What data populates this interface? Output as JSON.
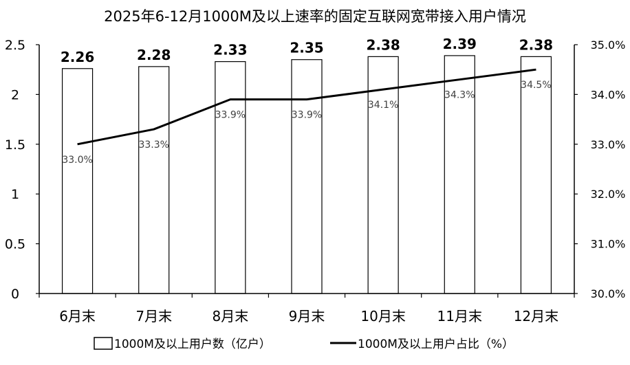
{
  "chart_data": {
    "type": "bar",
    "title": "2025年6-12月1000M及以上速率的固定互联网宽带接入用户情况",
    "categories": [
      "6月末",
      "7月末",
      "8月末",
      "9月末",
      "10月末",
      "11月末",
      "12月末"
    ],
    "series": [
      {
        "name": "1000M及以上用户数（亿户）",
        "type": "bar",
        "axis": "left",
        "values": [
          2.26,
          2.28,
          2.33,
          2.35,
          2.38,
          2.39,
          2.38
        ],
        "labels": [
          "2.26",
          "2.28",
          "2.33",
          "2.35",
          "2.38",
          "2.39",
          "2.38"
        ]
      },
      {
        "name": "1000M及以上用户占比（%）",
        "type": "line",
        "axis": "right",
        "values": [
          33.0,
          33.3,
          33.9,
          33.9,
          34.1,
          34.3,
          34.5
        ],
        "labels": [
          "33.0%",
          "33.3%",
          "33.9%",
          "33.9%",
          "34.1%",
          "34.3%",
          "34.5%"
        ]
      }
    ],
    "y_left": {
      "min": 0,
      "max": 2.5,
      "ticks": [
        "0",
        "0.5",
        "1",
        "1.5",
        "2",
        "2.5"
      ]
    },
    "y_right": {
      "min": 30.0,
      "max": 35.0,
      "ticks": [
        "30.0%",
        "31.0%",
        "32.0%",
        "33.0%",
        "34.0%",
        "35.0%"
      ]
    },
    "legend_position": "bottom",
    "grid": false
  }
}
